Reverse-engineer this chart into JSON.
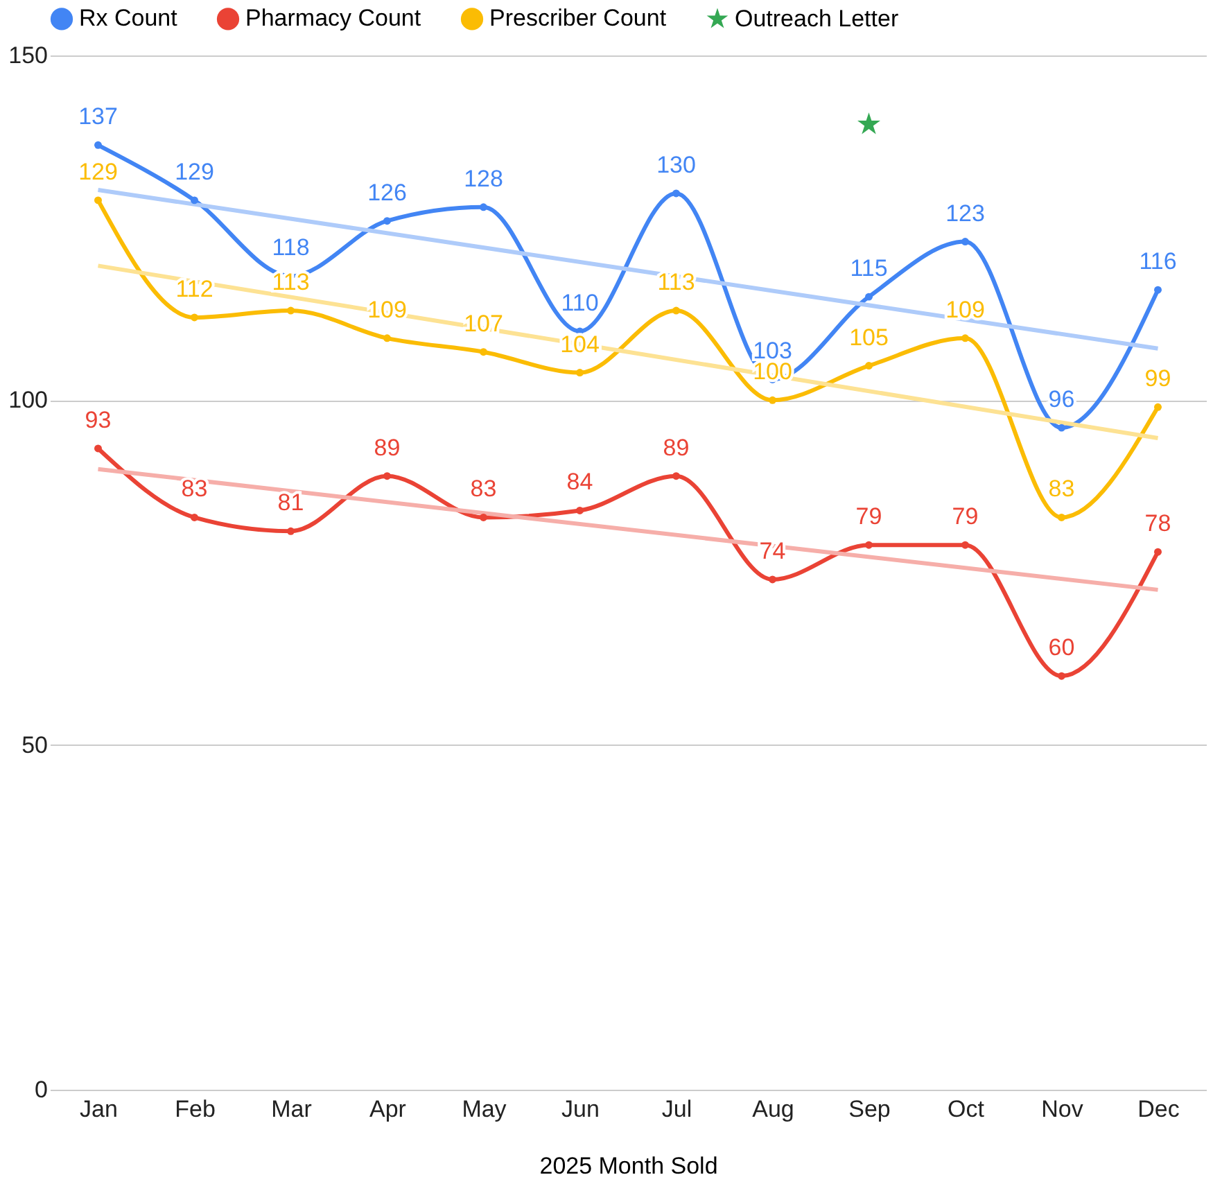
{
  "chart_data": {
    "type": "line",
    "xlabel": "2025 Month Sold",
    "categories": [
      "Jan",
      "Feb",
      "Mar",
      "Apr",
      "May",
      "Jun",
      "Jul",
      "Aug",
      "Sep",
      "Oct",
      "Nov",
      "Dec"
    ],
    "series": [
      {
        "name": "Rx Count",
        "color": "#4285f4",
        "values": [
          137,
          129,
          118,
          126,
          128,
          110,
          130,
          103,
          115,
          123,
          96,
          116
        ],
        "value_labels": [
          "137",
          "129",
          "118",
          "126",
          "128",
          "110",
          "130",
          "103",
          "115",
          "123",
          "96",
          "116"
        ]
      },
      {
        "name": "Pharmacy Count",
        "color": "#ea4335",
        "values": [
          93,
          83,
          81,
          89,
          83,
          84,
          89,
          74,
          79,
          79,
          60,
          78
        ],
        "value_labels": [
          "93",
          "83",
          "81",
          "89",
          "83",
          "84",
          "89",
          "74",
          "79",
          "79",
          "60",
          "78"
        ]
      },
      {
        "name": "Prescriber Count",
        "color": "#fbbc04",
        "values": [
          129,
          112,
          113,
          109,
          107,
          104,
          113,
          100,
          105,
          109,
          83,
          99
        ],
        "value_labels": [
          "129",
          "112",
          "113",
          "109",
          "107",
          "104",
          "113",
          "100",
          "105",
          "109",
          "83",
          "99"
        ]
      },
      {
        "name": "Outreach Letter",
        "type": "scatter",
        "marker": "star",
        "color": "#34a853",
        "x": [
          "Sep"
        ],
        "values": [
          140
        ]
      },
      {
        "type": "line",
        "marker": "none",
        "color": "#aecbfa",
        "x": [
          "Jan",
          "Dec"
        ],
        "values": [
          130.5,
          107.5
        ]
      },
      {
        "type": "line",
        "marker": "none",
        "color": "#f6aea9",
        "x": [
          "Jan",
          "Dec"
        ],
        "values": [
          90,
          72.5
        ]
      },
      {
        "type": "line",
        "marker": "none",
        "color": "#fde293",
        "x": [
          "Jan",
          "Dec"
        ],
        "values": [
          119.5,
          94.5
        ]
      }
    ],
    "marker": "circle",
    "ylim": [
      0,
      150
    ],
    "yticks": [
      0,
      50,
      100,
      150
    ],
    "grid": "y",
    "legend": "top"
  }
}
